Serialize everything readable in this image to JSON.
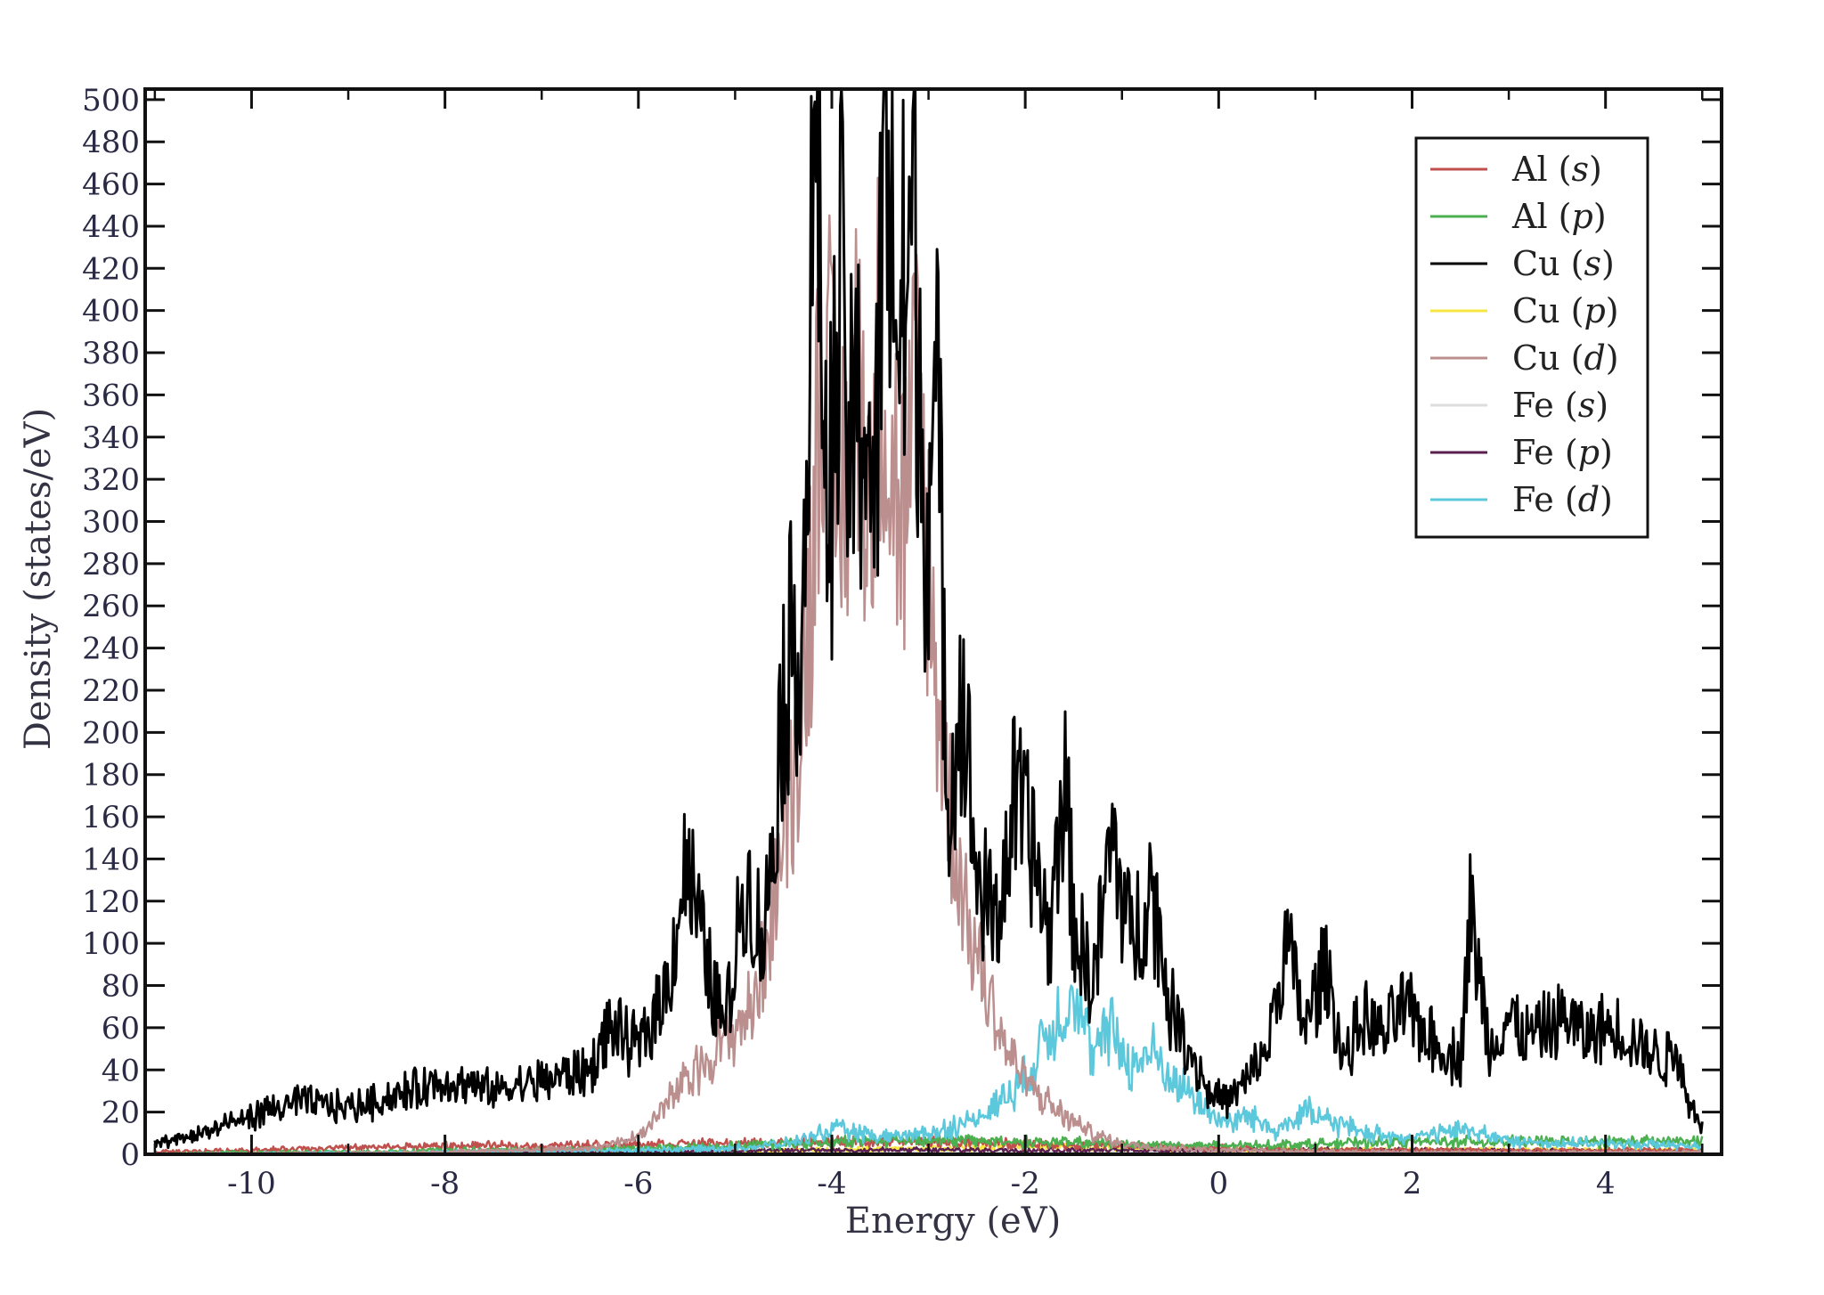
{
  "chart_data": {
    "type": "line",
    "title": "",
    "xlabel": "Energy (eV)",
    "ylabel": "Density (states/eV)",
    "xlim": [
      -11.1,
      5.2
    ],
    "ylim": [
      0,
      505
    ],
    "x_ticks": [
      -10,
      -8,
      -6,
      -4,
      -2,
      0,
      2,
      4
    ],
    "x_tick_labels": [
      "-10",
      "-8",
      "-6",
      "-4",
      "-2",
      "0",
      "2",
      "4"
    ],
    "y_ticks": [
      0,
      20,
      40,
      60,
      80,
      100,
      120,
      140,
      160,
      180,
      200,
      220,
      240,
      260,
      280,
      300,
      320,
      340,
      360,
      380,
      400,
      420,
      440,
      460,
      480,
      500
    ],
    "y_tick_labels": [
      "0",
      "20",
      "40",
      "60",
      "80",
      "100",
      "120",
      "140",
      "160",
      "180",
      "200",
      "220",
      "240",
      "260",
      "280",
      "300",
      "320",
      "340",
      "360",
      "380",
      "400",
      "420",
      "440",
      "460",
      "480",
      "500"
    ],
    "grid": false,
    "legend_position": "top-right",
    "series": [
      {
        "name": "Al (s)",
        "element": "Al",
        "orbital": "s",
        "color": "#c0504d",
        "x": [
          -11,
          -10,
          -9,
          -8,
          -7,
          -6,
          -5,
          -4,
          -3,
          -2,
          -1,
          0,
          1,
          2,
          3,
          4,
          5
        ],
        "y": [
          1,
          2,
          3,
          4,
          4,
          5,
          5,
          6,
          6,
          5,
          4,
          3,
          2,
          2,
          2,
          2,
          2
        ]
      },
      {
        "name": "Al (p)",
        "element": "Al",
        "orbital": "p",
        "color": "#4caf50",
        "x": [
          -11,
          -10,
          -9,
          -8,
          -7,
          -6,
          -5,
          -4,
          -3,
          -2,
          -1,
          0,
          1,
          2,
          3,
          4,
          5
        ],
        "y": [
          0,
          1,
          1,
          2,
          2,
          3,
          4,
          6,
          7,
          6,
          5,
          4,
          5,
          6,
          6,
          6,
          6
        ]
      },
      {
        "name": "Cu (s)",
        "element": "Cu",
        "orbital": "s",
        "color": "#000000",
        "x": [
          -11,
          -10.5,
          -10,
          -9.5,
          -9,
          -8.5,
          -8,
          -7.5,
          -7,
          -6.5,
          -6.3,
          -6,
          -5.7,
          -5.5,
          -5.3,
          -5.1,
          -4.9,
          -4.7,
          -4.5,
          -4.3,
          -4.15,
          -4.05,
          -3.9,
          -3.8,
          -3.65,
          -3.55,
          -3.45,
          -3.3,
          -3.15,
          -3.05,
          -2.9,
          -2.8,
          -2.65,
          -2.5,
          -2.3,
          -2.1,
          -1.9,
          -1.75,
          -1.6,
          -1.5,
          -1.3,
          -1.1,
          -0.9,
          -0.7,
          -0.5,
          -0.3,
          -0.1,
          0.1,
          0.3,
          0.5,
          0.7,
          0.9,
          1.1,
          1.3,
          1.5,
          1.7,
          1.9,
          2.1,
          2.3,
          2.5,
          2.6,
          2.8,
          3.0,
          3.2,
          3.4,
          3.6,
          3.8,
          4.0,
          4.2,
          4.4,
          4.6,
          4.75,
          4.85,
          5.0
        ],
        "y": [
          5,
          10,
          18,
          25,
          22,
          28,
          35,
          30,
          35,
          40,
          60,
          50,
          80,
          140,
          90,
          60,
          130,
          100,
          220,
          260,
          505,
          290,
          400,
          330,
          360,
          300,
          500,
          380,
          450,
          310,
          345,
          170,
          220,
          130,
          110,
          170,
          140,
          100,
          185,
          110,
          80,
          150,
          100,
          130,
          70,
          50,
          30,
          25,
          35,
          50,
          100,
          60,
          90,
          45,
          65,
          55,
          70,
          60,
          50,
          45,
          115,
          50,
          65,
          55,
          60,
          65,
          55,
          60,
          58,
          50,
          45,
          50,
          25,
          15
        ]
      },
      {
        "name": "Cu (p)",
        "element": "Cu",
        "orbital": "p",
        "color": "#f5e642",
        "x": [
          -11,
          -8,
          -6,
          -4,
          -3,
          -2,
          -1,
          0,
          2,
          4,
          5
        ],
        "y": [
          0,
          1,
          1,
          2,
          3,
          4,
          3,
          2,
          2,
          2,
          2
        ]
      },
      {
        "name": "Cu (d)",
        "element": "Cu",
        "orbital": "d",
        "color": "#bc8f8f",
        "x": [
          -11,
          -8,
          -6.5,
          -6,
          -5.6,
          -5.3,
          -5.0,
          -4.8,
          -4.6,
          -4.4,
          -4.2,
          -4.1,
          -3.95,
          -3.8,
          -3.7,
          -3.6,
          -3.5,
          -3.4,
          -3.25,
          -3.1,
          -2.95,
          -2.8,
          -2.6,
          -2.4,
          -2.2,
          -2.0,
          -1.8,
          -1.6,
          -1.4,
          -1.2,
          -1.0,
          -0.5,
          0,
          2,
          5
        ],
        "y": [
          0,
          1,
          3,
          8,
          30,
          45,
          60,
          70,
          120,
          180,
          280,
          410,
          300,
          340,
          375,
          290,
          400,
          330,
          300,
          360,
          240,
          170,
          110,
          80,
          50,
          35,
          25,
          18,
          12,
          8,
          5,
          3,
          2,
          1,
          1
        ]
      },
      {
        "name": "Fe (s)",
        "element": "Fe",
        "orbital": "s",
        "color": "#dddddd",
        "x": [
          -11,
          -6,
          -4,
          -2,
          0,
          2,
          5
        ],
        "y": [
          0,
          1,
          1,
          1,
          1,
          1,
          1
        ]
      },
      {
        "name": "Fe (p)",
        "element": "Fe",
        "orbital": "p",
        "color": "#5b1f4f",
        "x": [
          -11,
          -6,
          -4,
          -2,
          0,
          2,
          5
        ],
        "y": [
          0,
          1,
          2,
          2,
          2,
          2,
          1
        ]
      },
      {
        "name": "Fe (d)",
        "element": "Fe",
        "orbital": "d",
        "color": "#5bc8dc",
        "x": [
          -11,
          -8,
          -6,
          -5,
          -4.5,
          -4.2,
          -4,
          -3.5,
          -3,
          -2.6,
          -2.4,
          -2.2,
          -2.0,
          -1.8,
          -1.6,
          -1.5,
          -1.3,
          -1.1,
          -0.9,
          -0.7,
          -0.5,
          -0.3,
          -0.1,
          0.1,
          0.3,
          0.6,
          0.9,
          1.2,
          1.5,
          2,
          2.6,
          3,
          4,
          5
        ],
        "y": [
          0,
          1,
          2,
          3,
          5,
          8,
          12,
          8,
          10,
          15,
          20,
          28,
          35,
          55,
          70,
          80,
          45,
          60,
          40,
          50,
          35,
          30,
          20,
          15,
          18,
          12,
          20,
          15,
          10,
          8,
          12,
          6,
          5,
          4
        ]
      }
    ]
  }
}
